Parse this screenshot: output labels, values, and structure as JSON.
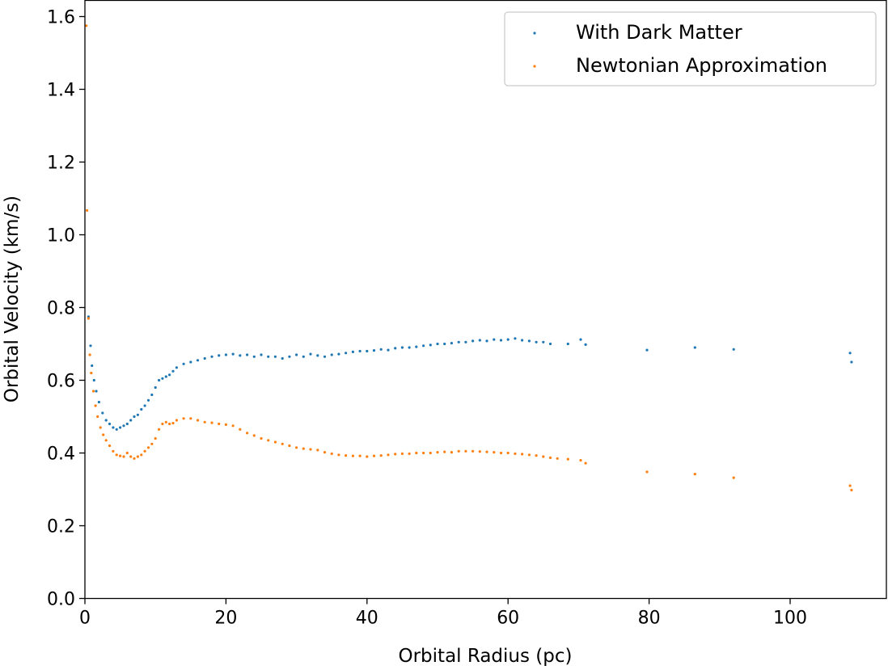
{
  "chart_data": {
    "type": "scatter",
    "title": "",
    "xlabel": "Orbital Radius (pc)",
    "ylabel": "Orbital Velocity (km/s)",
    "xlim": [
      0,
      114
    ],
    "ylim": [
      0,
      1.65
    ],
    "xticks": [
      0,
      20,
      40,
      60,
      80,
      100
    ],
    "yticks": [
      0.0,
      0.2,
      0.4,
      0.6,
      0.8,
      1.0,
      1.2,
      1.4,
      1.6
    ],
    "xtick_labels": [
      "0",
      "20",
      "40",
      "60",
      "80",
      "100"
    ],
    "ytick_labels": [
      "0.0",
      "0.2",
      "0.4",
      "0.6",
      "0.8",
      "1.0",
      "1.2",
      "1.4",
      "1.6"
    ],
    "grid": false,
    "legend": {
      "position": "top-right"
    },
    "series": [
      {
        "name": "With Dark Matter",
        "color": "#1f77b4",
        "points": [
          [
            0.5,
            0.775
          ],
          [
            0.8,
            0.695
          ],
          [
            1.0,
            0.64
          ],
          [
            1.3,
            0.6
          ],
          [
            1.6,
            0.57
          ],
          [
            2.0,
            0.54
          ],
          [
            2.5,
            0.51
          ],
          [
            3.0,
            0.49
          ],
          [
            3.5,
            0.48
          ],
          [
            4.0,
            0.47
          ],
          [
            4.5,
            0.465
          ],
          [
            5.0,
            0.47
          ],
          [
            5.5,
            0.475
          ],
          [
            6.0,
            0.48
          ],
          [
            6.5,
            0.49
          ],
          [
            7.0,
            0.5
          ],
          [
            7.5,
            0.505
          ],
          [
            8.0,
            0.52
          ],
          [
            8.5,
            0.53
          ],
          [
            9.0,
            0.545
          ],
          [
            9.5,
            0.56
          ],
          [
            10.0,
            0.58
          ],
          [
            10.5,
            0.6
          ],
          [
            11.0,
            0.605
          ],
          [
            11.5,
            0.61
          ],
          [
            12.0,
            0.615
          ],
          [
            12.5,
            0.625
          ],
          [
            13.0,
            0.635
          ],
          [
            14.0,
            0.645
          ],
          [
            15.0,
            0.65
          ],
          [
            16.0,
            0.655
          ],
          [
            17.0,
            0.66
          ],
          [
            18.0,
            0.665
          ],
          [
            19.0,
            0.668
          ],
          [
            20.0,
            0.67
          ],
          [
            21.0,
            0.672
          ],
          [
            22.0,
            0.668
          ],
          [
            23.0,
            0.67
          ],
          [
            24.0,
            0.665
          ],
          [
            25.0,
            0.67
          ],
          [
            26.0,
            0.665
          ],
          [
            27.0,
            0.665
          ],
          [
            28.0,
            0.66
          ],
          [
            29.0,
            0.665
          ],
          [
            30.0,
            0.67
          ],
          [
            31.0,
            0.665
          ],
          [
            32.0,
            0.672
          ],
          [
            33.0,
            0.668
          ],
          [
            34.0,
            0.665
          ],
          [
            35.0,
            0.67
          ],
          [
            36.0,
            0.672
          ],
          [
            37.0,
            0.675
          ],
          [
            38.0,
            0.678
          ],
          [
            39.0,
            0.68
          ],
          [
            40.0,
            0.68
          ],
          [
            41.0,
            0.682
          ],
          [
            42.0,
            0.685
          ],
          [
            43.0,
            0.683
          ],
          [
            44.0,
            0.688
          ],
          [
            45.0,
            0.69
          ],
          [
            46.0,
            0.69
          ],
          [
            47.0,
            0.692
          ],
          [
            48.0,
            0.695
          ],
          [
            49.0,
            0.697
          ],
          [
            50.0,
            0.7
          ],
          [
            51.0,
            0.7
          ],
          [
            52.0,
            0.702
          ],
          [
            53.0,
            0.705
          ],
          [
            54.0,
            0.705
          ],
          [
            55.0,
            0.708
          ],
          [
            56.0,
            0.71
          ],
          [
            57.0,
            0.708
          ],
          [
            58.0,
            0.712
          ],
          [
            59.0,
            0.71
          ],
          [
            60.0,
            0.712
          ],
          [
            61.0,
            0.715
          ],
          [
            62.0,
            0.71
          ],
          [
            63.0,
            0.708
          ],
          [
            64.0,
            0.705
          ],
          [
            65.0,
            0.705
          ],
          [
            66.0,
            0.7
          ],
          [
            68.5,
            0.7
          ],
          [
            70.3,
            0.712
          ],
          [
            71.0,
            0.698
          ],
          [
            79.7,
            0.683
          ],
          [
            86.5,
            0.69
          ],
          [
            92.0,
            0.685
          ],
          [
            108.5,
            0.675
          ],
          [
            108.7,
            0.65
          ]
        ]
      },
      {
        "name": "Newtonian Approximation",
        "color": "#ff7f0e",
        "points": [
          [
            0.2,
            1.575
          ],
          [
            0.3,
            1.067
          ],
          [
            0.5,
            0.77
          ],
          [
            0.7,
            0.67
          ],
          [
            0.9,
            0.62
          ],
          [
            1.2,
            0.57
          ],
          [
            1.5,
            0.53
          ],
          [
            1.8,
            0.5
          ],
          [
            2.2,
            0.47
          ],
          [
            2.6,
            0.45
          ],
          [
            3.0,
            0.435
          ],
          [
            3.5,
            0.42
          ],
          [
            4.0,
            0.405
          ],
          [
            4.5,
            0.395
          ],
          [
            5.0,
            0.392
          ],
          [
            5.5,
            0.39
          ],
          [
            6.0,
            0.4
          ],
          [
            6.5,
            0.39
          ],
          [
            7.0,
            0.385
          ],
          [
            7.5,
            0.39
          ],
          [
            8.0,
            0.395
          ],
          [
            8.5,
            0.405
          ],
          [
            9.0,
            0.415
          ],
          [
            9.5,
            0.425
          ],
          [
            10.0,
            0.44
          ],
          [
            10.5,
            0.465
          ],
          [
            11.0,
            0.48
          ],
          [
            11.5,
            0.485
          ],
          [
            12.0,
            0.48
          ],
          [
            12.5,
            0.482
          ],
          [
            13.0,
            0.49
          ],
          [
            14.0,
            0.495
          ],
          [
            15.0,
            0.495
          ],
          [
            16.0,
            0.49
          ],
          [
            17.0,
            0.485
          ],
          [
            18.0,
            0.483
          ],
          [
            19.0,
            0.48
          ],
          [
            20.0,
            0.478
          ],
          [
            21.0,
            0.475
          ],
          [
            22.0,
            0.465
          ],
          [
            23.0,
            0.455
          ],
          [
            24.0,
            0.448
          ],
          [
            25.0,
            0.44
          ],
          [
            26.0,
            0.435
          ],
          [
            27.0,
            0.43
          ],
          [
            28.0,
            0.425
          ],
          [
            29.0,
            0.42
          ],
          [
            30.0,
            0.415
          ],
          [
            31.0,
            0.412
          ],
          [
            32.0,
            0.41
          ],
          [
            33.0,
            0.408
          ],
          [
            34.0,
            0.402
          ],
          [
            35.0,
            0.398
          ],
          [
            36.0,
            0.395
          ],
          [
            37.0,
            0.393
          ],
          [
            38.0,
            0.392
          ],
          [
            39.0,
            0.392
          ],
          [
            40.0,
            0.39
          ],
          [
            41.0,
            0.392
          ],
          [
            42.0,
            0.393
          ],
          [
            43.0,
            0.395
          ],
          [
            44.0,
            0.397
          ],
          [
            45.0,
            0.398
          ],
          [
            46.0,
            0.398
          ],
          [
            47.0,
            0.4
          ],
          [
            48.0,
            0.4
          ],
          [
            49.0,
            0.4
          ],
          [
            50.0,
            0.402
          ],
          [
            51.0,
            0.403
          ],
          [
            52.0,
            0.402
          ],
          [
            53.0,
            0.405
          ],
          [
            54.0,
            0.405
          ],
          [
            55.0,
            0.405
          ],
          [
            56.0,
            0.404
          ],
          [
            57.0,
            0.403
          ],
          [
            58.0,
            0.402
          ],
          [
            59.0,
            0.4
          ],
          [
            60.0,
            0.4
          ],
          [
            61.0,
            0.398
          ],
          [
            62.0,
            0.397
          ],
          [
            63.0,
            0.395
          ],
          [
            64.0,
            0.393
          ],
          [
            65.0,
            0.39
          ],
          [
            66.0,
            0.387
          ],
          [
            67.0,
            0.385
          ],
          [
            68.5,
            0.383
          ],
          [
            70.3,
            0.38
          ],
          [
            71.0,
            0.372
          ],
          [
            79.7,
            0.348
          ],
          [
            86.5,
            0.342
          ],
          [
            92.0,
            0.332
          ],
          [
            108.5,
            0.31
          ],
          [
            108.7,
            0.298
          ]
        ]
      }
    ]
  }
}
